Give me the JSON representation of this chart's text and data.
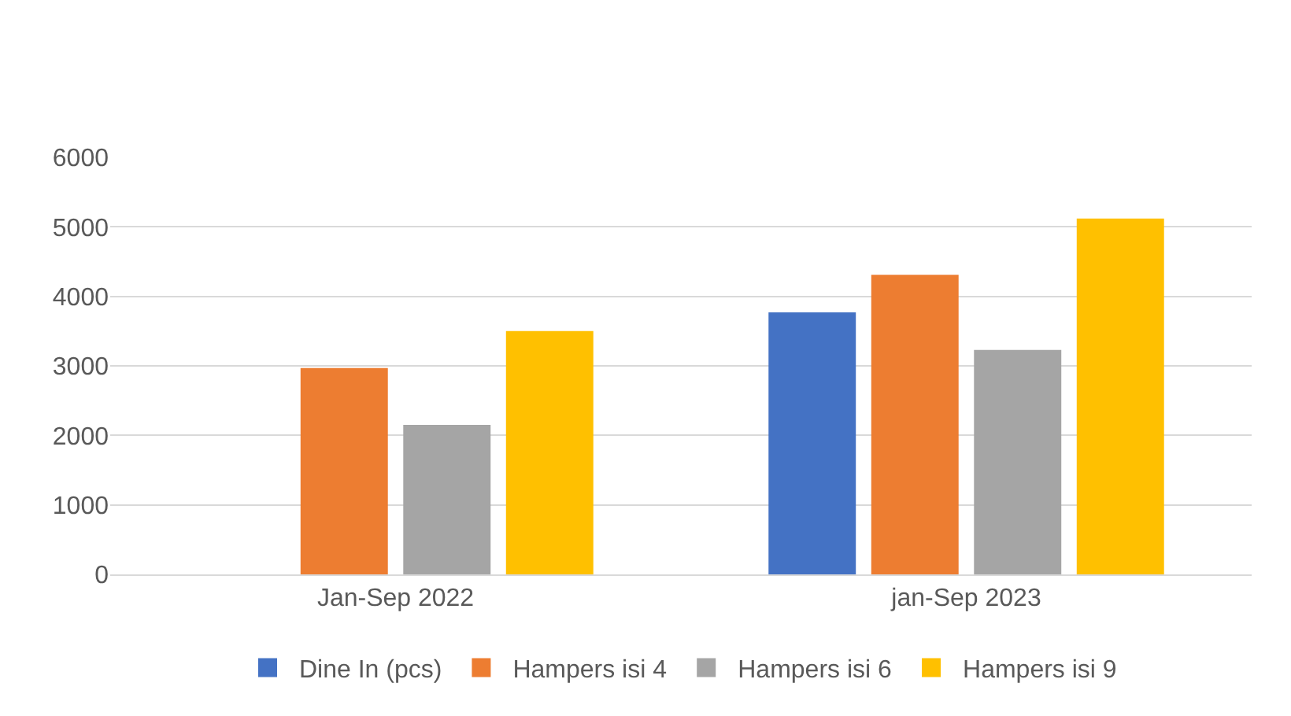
{
  "chart_data": {
    "type": "bar",
    "categories": [
      "Jan-Sep 2022",
      "jan-Sep 2023"
    ],
    "series": [
      {
        "name": "Dine In (pcs)",
        "color": "#4472c4",
        "values": [
          null,
          3770
        ]
      },
      {
        "name": "Hampers isi 4",
        "color": "#ed7d31",
        "values": [
          2970,
          4310
        ]
      },
      {
        "name": "Hampers isi 6",
        "color": "#a5a5a5",
        "values": [
          2150,
          3230
        ]
      },
      {
        "name": "Hampers isi 9",
        "color": "#ffc000",
        "values": [
          3500,
          5120
        ]
      }
    ],
    "ylim": [
      0,
      6000
    ],
    "yticks": [
      0,
      1000,
      2000,
      3000,
      4000,
      5000,
      6000
    ],
    "grid": "y",
    "legend": "bottom"
  }
}
